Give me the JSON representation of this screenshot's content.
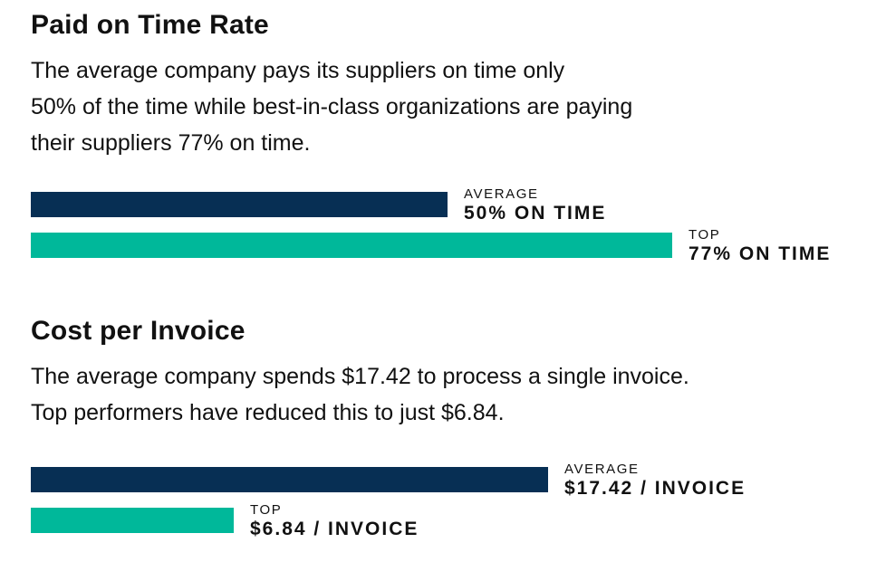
{
  "colors": {
    "average": "#072f54",
    "top": "#00b89a"
  },
  "chart_data": [
    {
      "type": "bar",
      "orientation": "horizontal",
      "title": "Paid on Time Rate",
      "description": [
        "The average company pays its suppliers on time only",
        "50% of the time while best-in-class organizations are paying",
        "their suppliers 77% on time."
      ],
      "categories": [
        "AVERAGE",
        "TOP"
      ],
      "values": [
        50,
        77
      ],
      "value_labels": [
        "50% ON TIME",
        "77% ON TIME"
      ],
      "xlim": [
        0,
        100
      ],
      "grid": false
    },
    {
      "type": "bar",
      "orientation": "horizontal",
      "title": "Cost per Invoice",
      "description": [
        "The average company spends $17.42 to process a single invoice.",
        "Top performers have reduced this to just $6.84."
      ],
      "categories": [
        "AVERAGE",
        "TOP"
      ],
      "values": [
        17.42,
        6.84
      ],
      "value_labels": [
        "$17.42 / INVOICE",
        "$6.84 / INVOICE"
      ],
      "xlim": [
        0,
        20
      ],
      "grid": false
    }
  ]
}
